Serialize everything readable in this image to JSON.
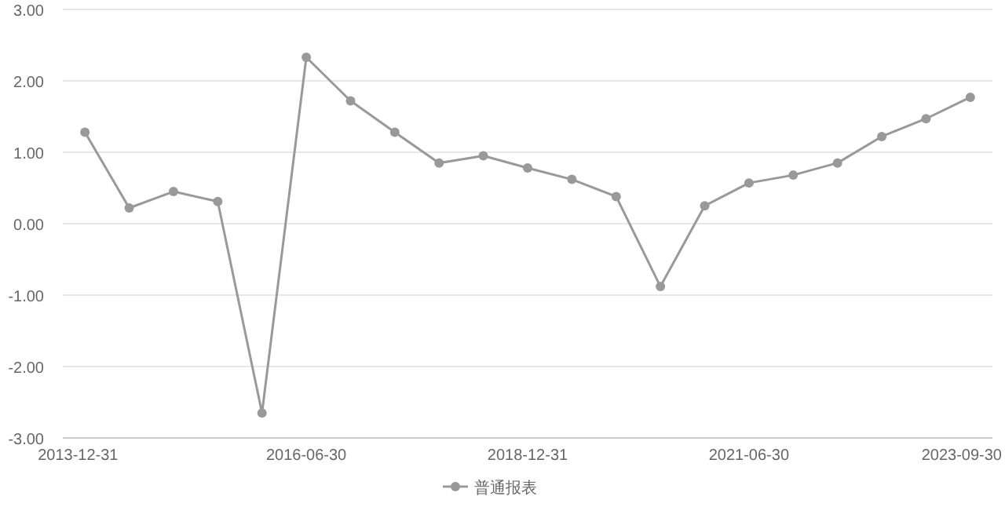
{
  "chart_data": {
    "type": "line",
    "categories": [
      "2013-12-31",
      null,
      null,
      null,
      null,
      "2016-06-30",
      null,
      null,
      null,
      null,
      "2018-12-31",
      null,
      null,
      null,
      null,
      "2021-06-30",
      null,
      null,
      null,
      null,
      "2023-09-30"
    ],
    "series": [
      {
        "name": "普通报表",
        "color": "#999999",
        "values": [
          1.28,
          0.22,
          0.45,
          0.31,
          -2.65,
          2.33,
          1.72,
          1.28,
          0.85,
          0.95,
          0.78,
          0.62,
          0.38,
          -0.88,
          0.25,
          0.57,
          0.68,
          0.85,
          1.22,
          1.47,
          1.77
        ]
      }
    ],
    "ylim": [
      -3,
      3
    ],
    "yticks": [
      {
        "value": -3,
        "label": "-3.00"
      },
      {
        "value": -2,
        "label": "-2.00"
      },
      {
        "value": -1,
        "label": "-1.00"
      },
      {
        "value": 0,
        "label": "0.00"
      },
      {
        "value": 1,
        "label": "1.00"
      },
      {
        "value": 2,
        "label": "2.00"
      },
      {
        "value": 3,
        "label": "3.00"
      }
    ],
    "grid": "y",
    "legend": "bottom",
    "marker": "circle",
    "line_style": "solid"
  }
}
